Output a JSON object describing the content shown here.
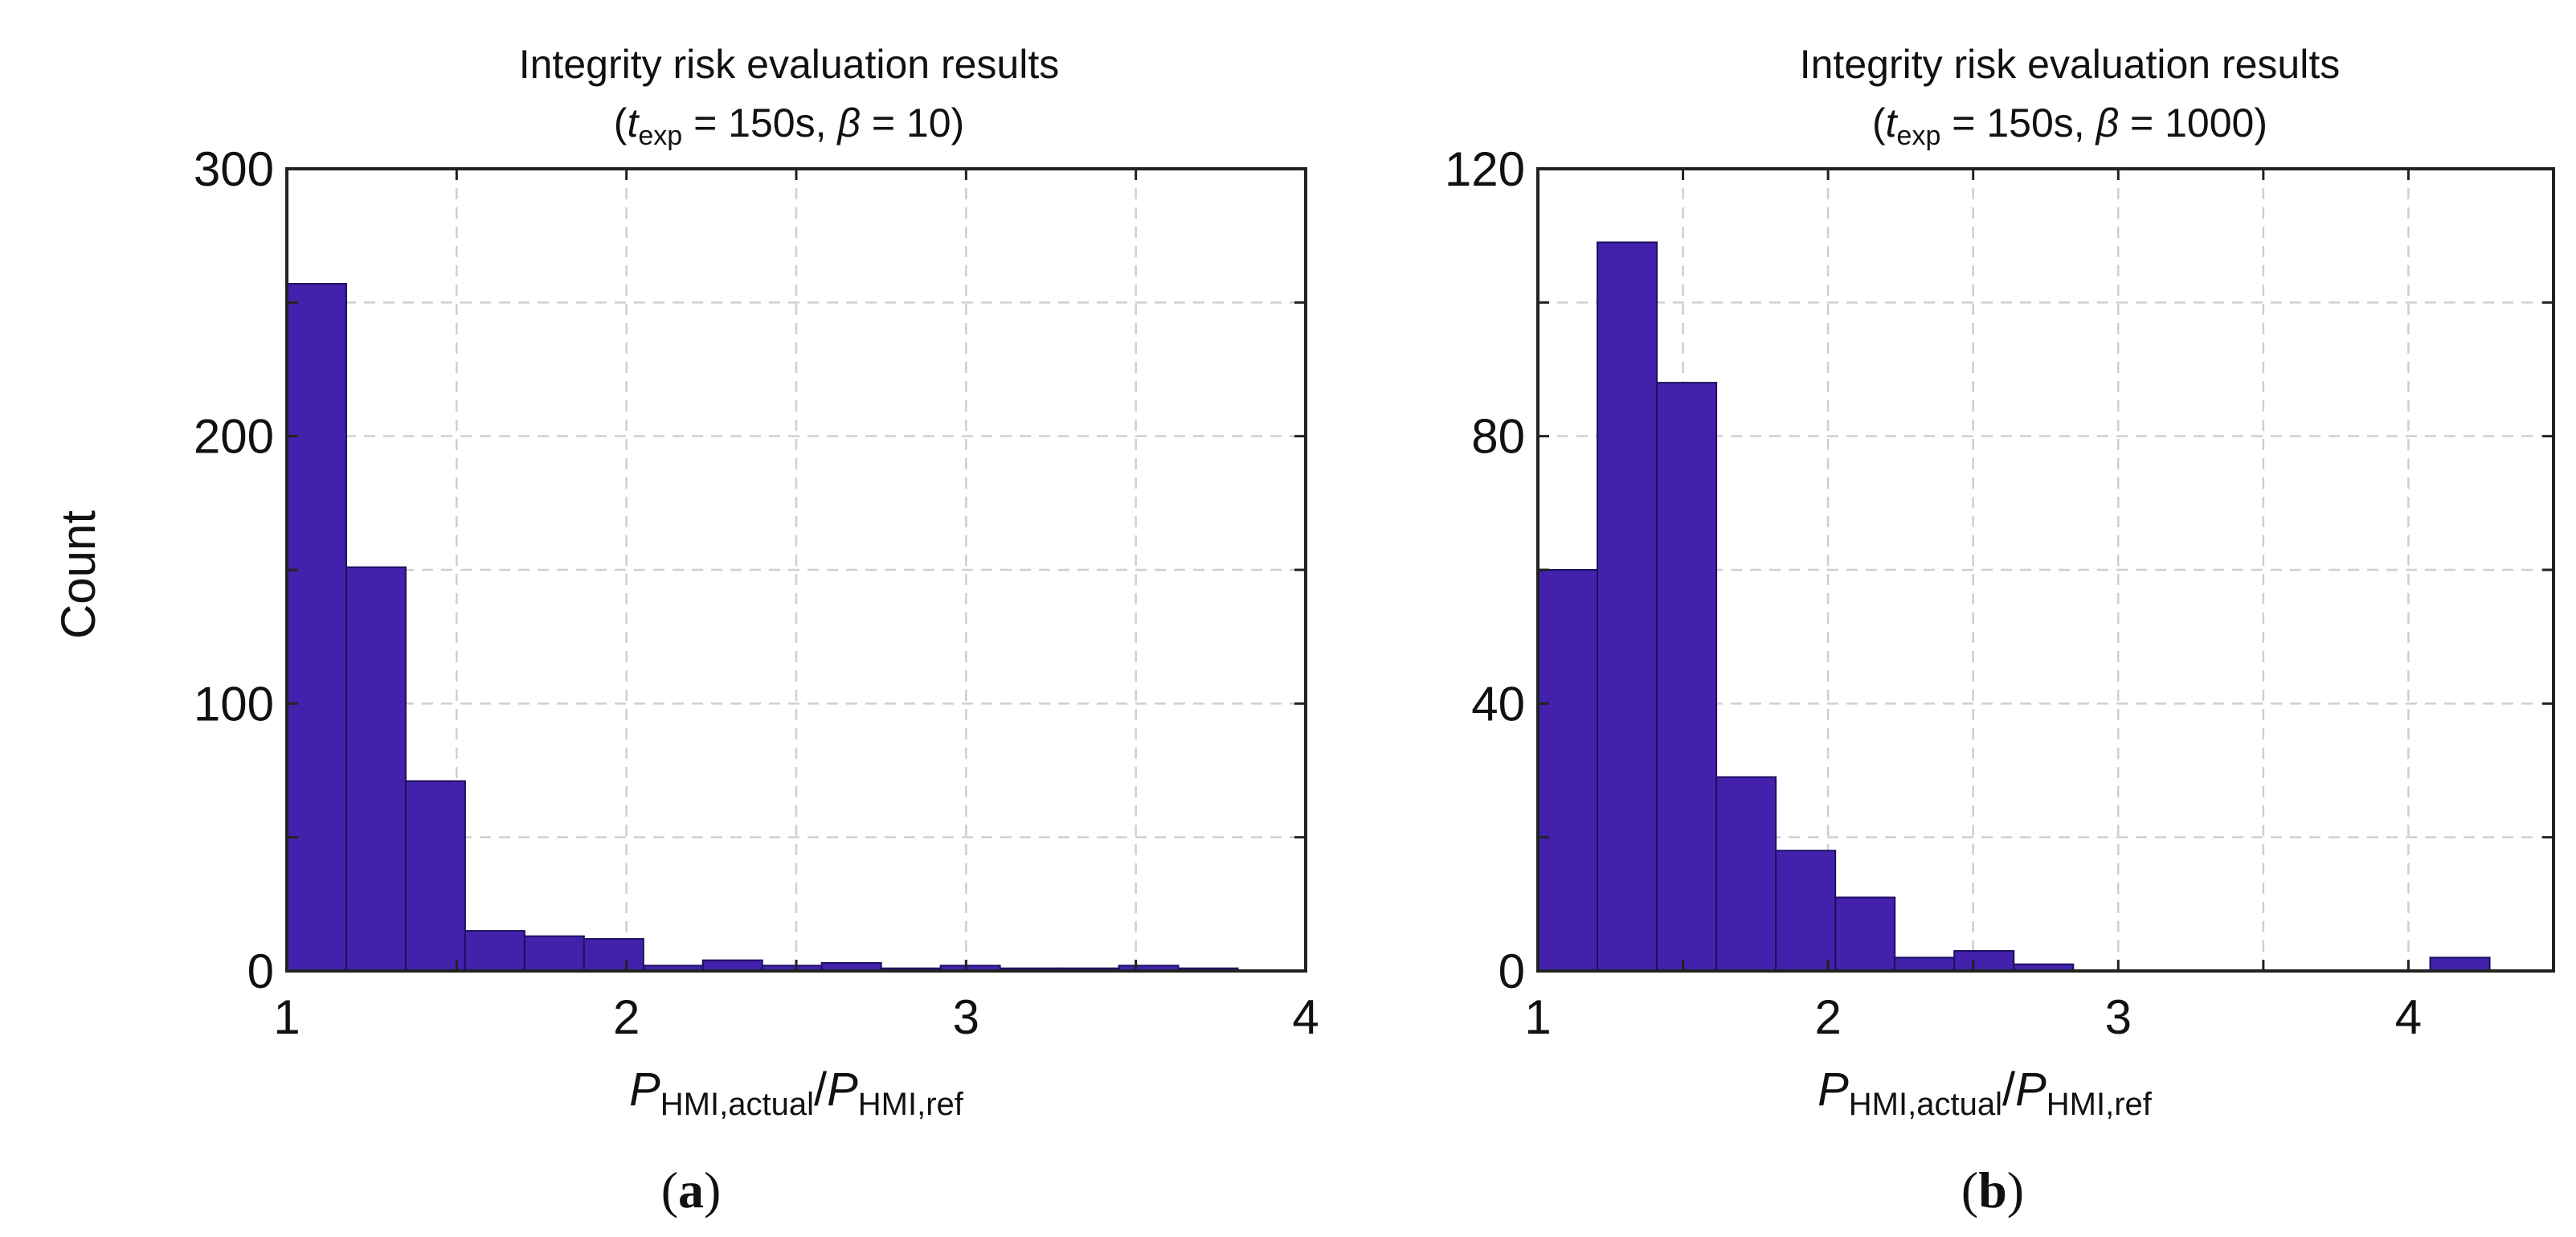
{
  "colors": {
    "bar": "#4321ac",
    "bar_edge": "#1c1060",
    "grid": "#cfcfcf",
    "axis": "#222222"
  },
  "shared": {
    "ylabel": "Count"
  },
  "chart_data": [
    {
      "type": "bar",
      "panel_label": "a",
      "title": "Integrity risk evaluation results",
      "subtitle": {
        "open": "(",
        "t_main": "t",
        "t_sub": "exp",
        "t_value": " = 150s,  ",
        "beta_symbol": "β",
        "beta_value": " = 10)"
      },
      "xlabel": {
        "p1": "P",
        "sub1": "HMI,actual",
        "slash": "/",
        "p2": "P",
        "sub2": "HMI,ref"
      },
      "xlim": [
        1,
        4
      ],
      "ylim": [
        0,
        300
      ],
      "xticks": [
        "1",
        "2",
        "3",
        "4"
      ],
      "yticks": [
        "0",
        "100",
        "200",
        "300"
      ],
      "bin_edges": [
        1.0,
        1.175,
        1.35,
        1.525,
        1.7,
        1.875,
        2.05,
        2.225,
        2.4,
        2.575,
        2.75,
        2.925,
        3.1,
        3.275,
        3.45,
        3.625,
        3.8
      ],
      "values": [
        257,
        151,
        71,
        15,
        13,
        12,
        2,
        4,
        2,
        3,
        1,
        2,
        1,
        1,
        2,
        1
      ]
    },
    {
      "type": "bar",
      "panel_label": "b",
      "title": "Integrity risk evaluation results",
      "subtitle": {
        "open": "(",
        "t_main": "t",
        "t_sub": "exp",
        "t_value": " = 150s,  ",
        "beta_symbol": "β",
        "beta_value": " = 1000)"
      },
      "xlabel": {
        "p1": "P",
        "sub1": "HMI,actual",
        "slash": "/",
        "p2": "P",
        "sub2": "HMI,ref"
      },
      "xlim": [
        1,
        4.5
      ],
      "ylim": [
        0,
        120
      ],
      "xticks": [
        "1",
        "2",
        "3",
        "4"
      ],
      "yticks": [
        "0",
        "40",
        "80",
        "120"
      ],
      "bin_edges": [
        1.0,
        1.205,
        1.41,
        1.615,
        1.82,
        2.025,
        2.23,
        2.435,
        2.64,
        2.845,
        3.05,
        3.255,
        3.46,
        3.665,
        3.87,
        4.075,
        4.28
      ],
      "values": [
        60,
        109,
        88,
        29,
        18,
        11,
        2,
        3,
        1,
        0,
        0,
        0,
        0,
        0,
        0,
        2
      ]
    }
  ]
}
